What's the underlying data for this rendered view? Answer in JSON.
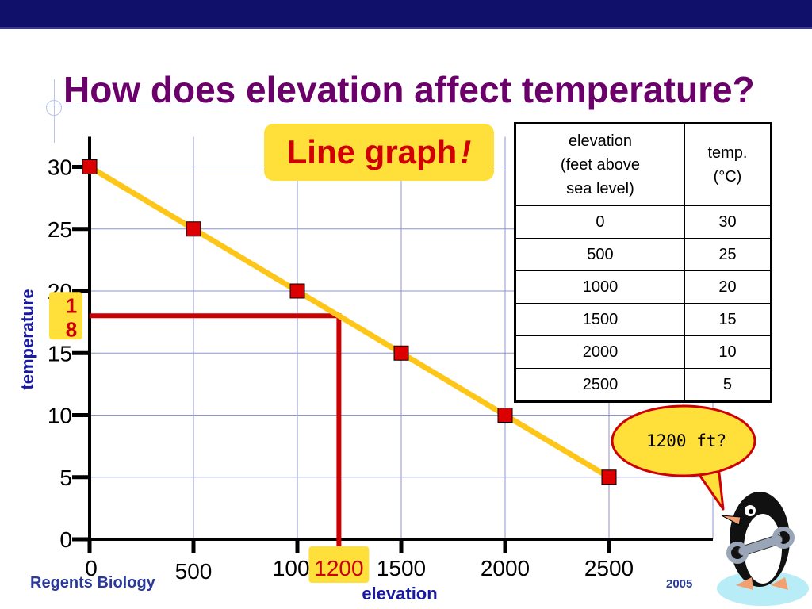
{
  "slide": {
    "title": "How does elevation affect temperature?",
    "badge_text": "Line graph",
    "badge_exclaim": "!",
    "footer_left": "Regents Biology",
    "footer_right": "2005",
    "bubble_text": "1200 ft?"
  },
  "table": {
    "header_elevation": [
      "elevation",
      "(feet above",
      "sea level)"
    ],
    "header_temp": [
      "temp.",
      "(°C)"
    ],
    "rows": [
      [
        "0",
        "30"
      ],
      [
        "500",
        "25"
      ],
      [
        "1000",
        "20"
      ],
      [
        "1500",
        "15"
      ],
      [
        "2000",
        "10"
      ],
      [
        "2500",
        "5"
      ]
    ]
  },
  "colors": {
    "title": "#6b006b",
    "line": "#ffc61a",
    "marker": "#dd0000",
    "guide": "#cc0000",
    "highlight": "#ffe03a",
    "grid": "#8c96cc",
    "axis_label": "#1a1aa0"
  },
  "chart_data": {
    "type": "line",
    "xlabel": "elevation",
    "ylabel": "temperature",
    "x": [
      0,
      500,
      1000,
      1500,
      2000,
      2500
    ],
    "series": [
      {
        "values": [
          30,
          25,
          20,
          15,
          10,
          5
        ]
      }
    ],
    "x_ticks": [
      "0",
      "500",
      "1000",
      "1500",
      "2000",
      "2500"
    ],
    "y_ticks": [
      "0",
      "5",
      "10",
      "15",
      "20",
      "25",
      "30"
    ],
    "xlim": [
      0,
      3000
    ],
    "ylim": [
      0,
      30
    ],
    "grid": true,
    "annotation": {
      "x": 1200,
      "y": 18,
      "x_label": "1200",
      "y_label": "18"
    }
  }
}
